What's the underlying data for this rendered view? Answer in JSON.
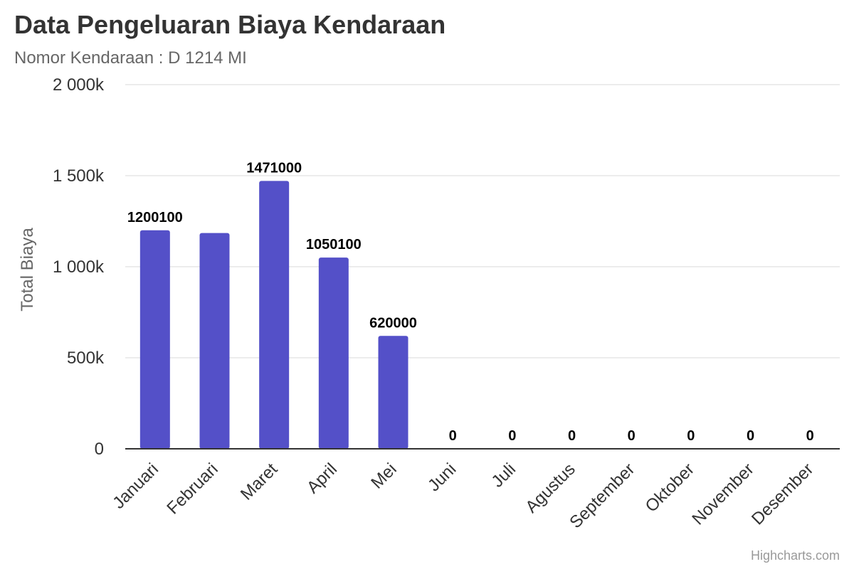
{
  "chart_data": {
    "type": "bar",
    "title": "Data Pengeluaran Biaya Kendaraan",
    "subtitle": "Nomor Kendaraan : D 1214 MI",
    "xlabel": "",
    "ylabel": "Total Biaya",
    "categories": [
      "Januari",
      "Februari",
      "Maret",
      "April",
      "Mei",
      "Juni",
      "Juli",
      "Agustus",
      "September",
      "Oktober",
      "November",
      "Desember"
    ],
    "series": [
      {
        "values": [
          1200100,
          1185000,
          1471000,
          1050100,
          620000,
          0,
          0,
          0,
          0,
          0,
          0,
          0
        ],
        "data_labels": [
          "1200100",
          "",
          "1471000",
          "1050100",
          "620000",
          "0",
          "0",
          "0",
          "0",
          "0",
          "0",
          "0"
        ],
        "color": "#5450c8"
      }
    ],
    "ylim": [
      0,
      2000000
    ],
    "yticks": [
      0,
      500000,
      1000000,
      1500000,
      2000000
    ],
    "ytick_labels": [
      "0",
      "500k",
      "1 000k",
      "1 500k",
      "2 000k"
    ],
    "grid": true,
    "legend": "none",
    "gridline_color": "#e6e6e6",
    "axis_color": "#333333"
  },
  "credits": "Highcharts.com"
}
